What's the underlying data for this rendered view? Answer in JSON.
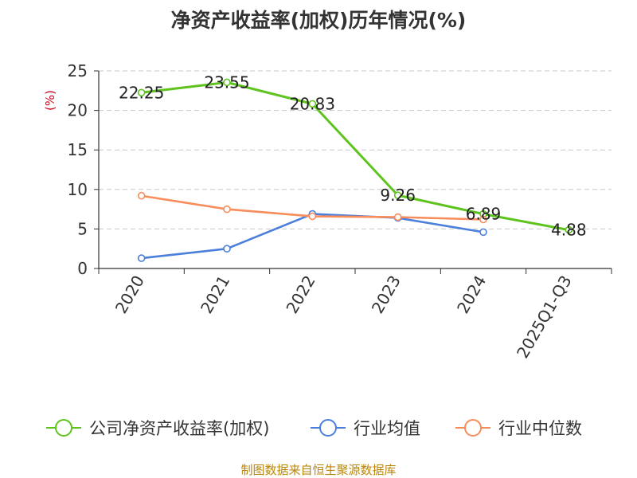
{
  "title": "净资产收益率(加权)历年情况(%)",
  "footer": "制图数据来自恒生聚源数据库",
  "chart_data": {
    "type": "line",
    "title": "净资产收益率(加权)历年情况(%)",
    "ylabel": "(%)",
    "ylim": [
      0,
      25
    ],
    "yticks": [
      0,
      5,
      10,
      15,
      20,
      25
    ],
    "grid": true,
    "legend_position": "bottom",
    "categories": [
      "2020",
      "2021",
      "2022",
      "2023",
      "2024",
      "2025Q1-Q3"
    ],
    "series": [
      {
        "name": "公司净资产收益率(加权)",
        "color": "#5ec41d",
        "values": [
          22.25,
          23.55,
          20.83,
          9.26,
          6.89,
          4.88
        ],
        "labels": [
          "22.25",
          "23.55",
          "20.83",
          "9.26",
          "6.89",
          "4.88"
        ]
      },
      {
        "name": "行业均值",
        "color": "#4a7fdc",
        "values": [
          1.3,
          2.5,
          6.9,
          6.4,
          4.6,
          null
        ]
      },
      {
        "name": "行业中位数",
        "color": "#f98c5b",
        "values": [
          9.2,
          7.5,
          6.6,
          6.5,
          6.2,
          null
        ]
      }
    ]
  }
}
